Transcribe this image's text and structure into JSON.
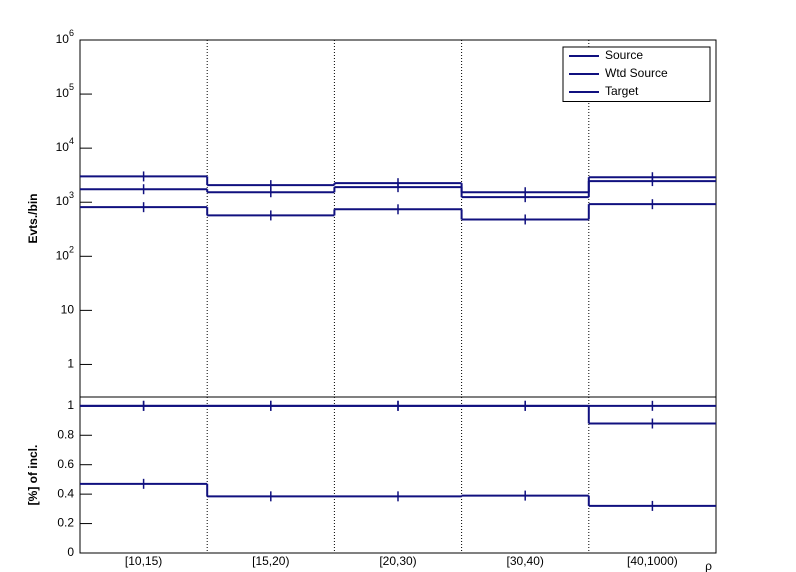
{
  "chart_data": [
    {
      "type": "step",
      "ylabel": "Evts./bin",
      "log_scale": true,
      "grid": "x",
      "legend": "top-right",
      "ylim": [
        0.25,
        1000000
      ],
      "yticks": [
        1,
        10,
        {
          "value": 100,
          "label": "10^2"
        },
        {
          "value": 1000,
          "label": "10^3"
        },
        {
          "value": 10000,
          "label": "10^4"
        },
        {
          "value": 100000,
          "label": "10^5"
        },
        {
          "value": 1000000,
          "label": "10^6"
        }
      ],
      "series": [
        {
          "name": "Source",
          "color": "#10107f",
          "values": [
            3000,
            2070,
            2250,
            1530,
            2900
          ]
        },
        {
          "name": "Wtd Source",
          "color": "#10107f",
          "values": [
            1740,
            1530,
            1900,
            1240,
            2460
          ]
        },
        {
          "name": "Target",
          "color": "#10107f",
          "values": [
            810,
            570,
            740,
            480,
            920
          ]
        }
      ]
    },
    {
      "type": "step",
      "ylabel": "[%] of incl.",
      "xlabel": "ρ",
      "grid": "x",
      "categories": [
        "[10,15)",
        "[15,20)",
        "[20,30)",
        "[30,40)",
        "[40,1000)"
      ],
      "ylim": [
        0,
        1.06
      ],
      "yticks": [
        0,
        0.2,
        0.4,
        0.6,
        0.8,
        1
      ],
      "series": [
        {
          "color": "#10107f",
          "values": [
            1,
            1,
            1,
            1,
            1
          ]
        },
        {
          "color": "#10107f",
          "values": [
            1,
            1,
            1,
            1,
            0.88
          ]
        },
        {
          "color": "#10107f",
          "values": [
            0.47,
            0.385,
            0.385,
            0.39,
            0.32
          ]
        }
      ]
    }
  ]
}
